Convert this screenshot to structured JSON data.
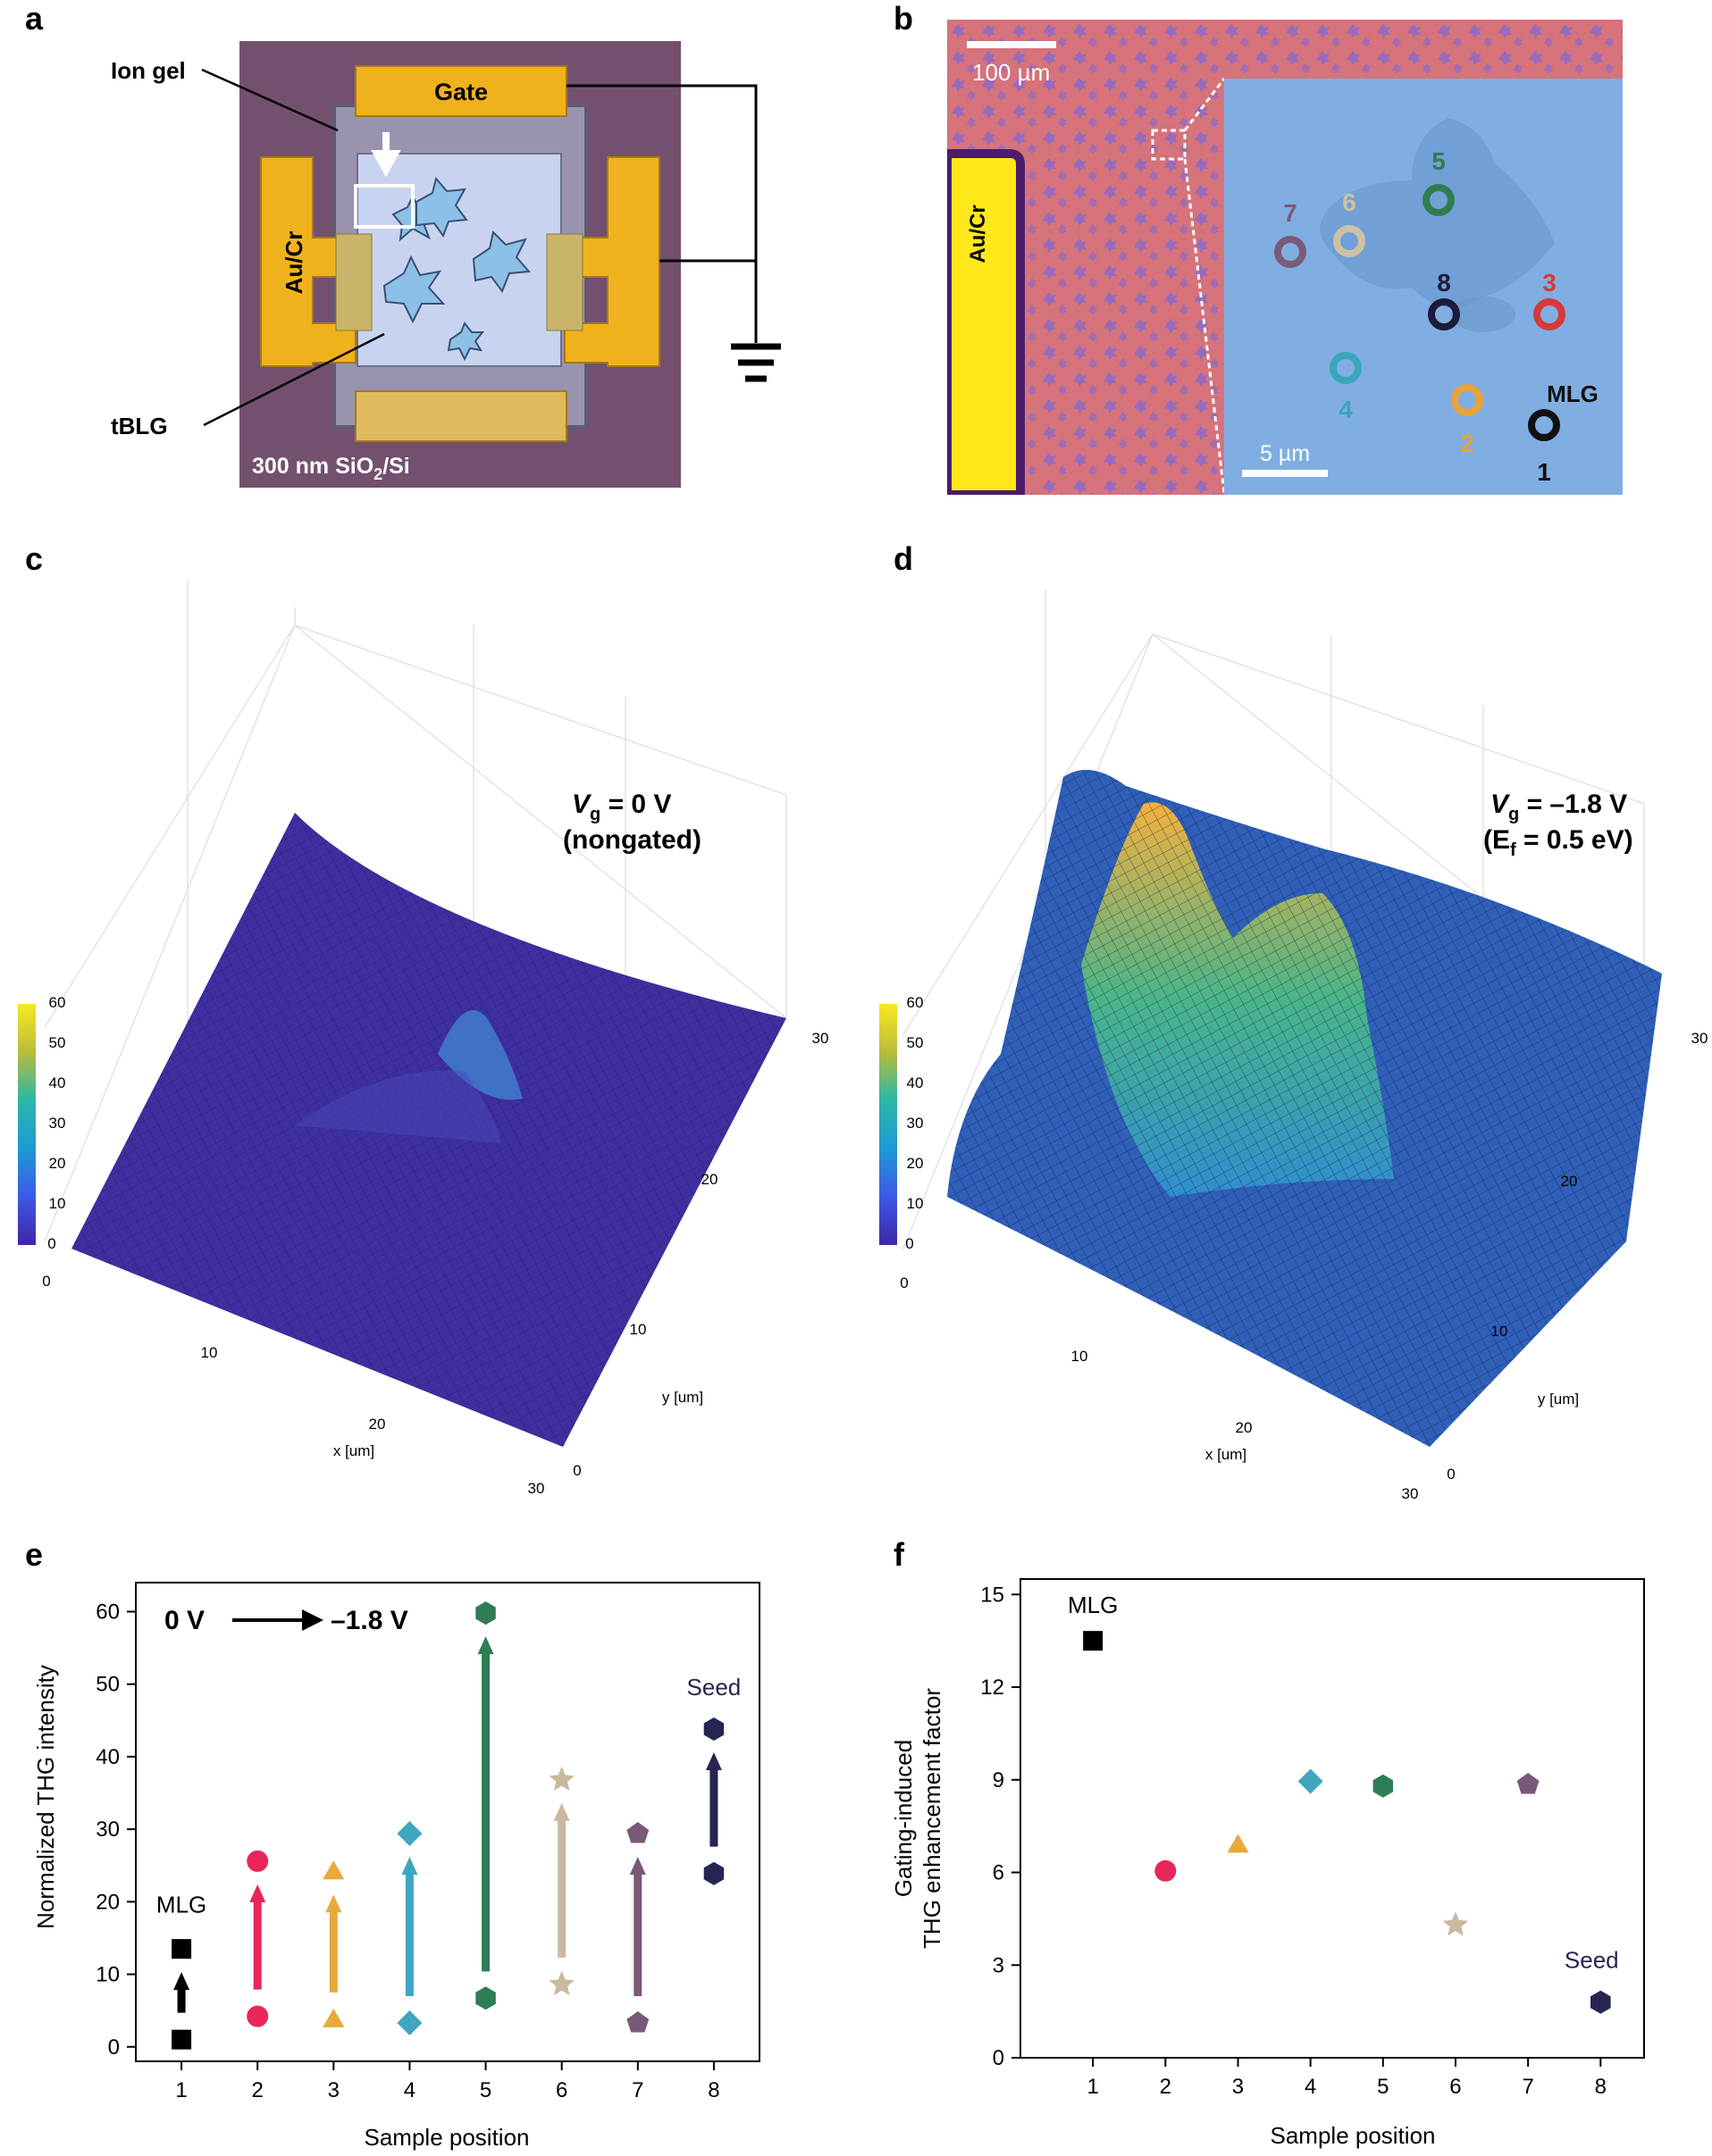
{
  "panels": {
    "a": {
      "letter": "a",
      "labels": {
        "ion_gel": "Ion gel",
        "gate": "Gate",
        "au_cr": "Au/Cr",
        "tblg": "tBLG",
        "substrate_main": "300 nm SiO",
        "substrate_sub": "2",
        "substrate_tail": "/Si"
      },
      "colors": {
        "substrate": "#74506f",
        "electrode": "#f0b21c",
        "flake": "#8cc0e6",
        "window": "#c8d4ef"
      }
    },
    "b": {
      "letter": "b",
      "scale_outer": "100 µm",
      "scale_inner": "5 µm",
      "au_cr": "Au/Cr",
      "mlg": "MLG",
      "positions": [
        {
          "num": "1",
          "color": "#111111"
        },
        {
          "num": "2",
          "color": "#e8a33a"
        },
        {
          "num": "3",
          "color": "#d63a3a"
        },
        {
          "num": "4",
          "color": "#3aa6b9"
        },
        {
          "num": "5",
          "color": "#2f7d4f"
        },
        {
          "num": "6",
          "color": "#cfc0a5"
        },
        {
          "num": "7",
          "color": "#7b5b78"
        },
        {
          "num": "8",
          "color": "#1c1c3a"
        }
      ]
    },
    "c": {
      "letter": "c",
      "annotation_main": "V",
      "annotation_sub": "g",
      "annotation_rest": " = 0 V",
      "annotation_line2": "(nongated)",
      "xlabel": "x [um]",
      "ylabel": "y [um]",
      "x_ticks": [
        "0",
        "10",
        "20",
        "30"
      ],
      "y_ticks": [
        "0",
        "10",
        "20",
        "30"
      ],
      "colorbar_ticks": [
        "0",
        "10",
        "20",
        "30",
        "40",
        "50",
        "60"
      ]
    },
    "d": {
      "letter": "d",
      "annotation_main": "V",
      "annotation_sub": "g",
      "annotation_rest": " = –1.8 V",
      "annotation_line2_a": "(E",
      "annotation_line2_sub": "f",
      "annotation_line2_b": " = 0.5 eV)",
      "xlabel": "x [um]",
      "ylabel": "y [um]",
      "x_ticks": [
        "0",
        "10",
        "20",
        "30"
      ],
      "y_ticks": [
        "0",
        "10",
        "20",
        "30"
      ],
      "colorbar_ticks": [
        "0",
        "10",
        "20",
        "30",
        "40",
        "50",
        "60"
      ]
    },
    "e": {
      "letter": "e"
    },
    "f": {
      "letter": "f"
    }
  },
  "chart_data": [
    {
      "panel": "e",
      "type": "scatter",
      "xlabel": "Sample position",
      "ylabel": "Normalized THG intensity",
      "x_ticks": [
        "1",
        "2",
        "3",
        "4",
        "5",
        "6",
        "7",
        "8"
      ],
      "y_ticks": [
        "0",
        "10",
        "20",
        "30",
        "40",
        "50",
        "60"
      ],
      "xlim": [
        0.4,
        8.6
      ],
      "ylim": [
        -2,
        64
      ],
      "legend_text": {
        "from": "0 V",
        "to": "–1.8 V"
      },
      "annotations": [
        {
          "text": "MLG",
          "x": 1,
          "y": 18.5
        },
        {
          "text": "Seed",
          "x": 8,
          "y": 48.5
        }
      ],
      "points": [
        {
          "x": 1,
          "before": 1,
          "after": 13.5,
          "marker": "square",
          "color": "#000000"
        },
        {
          "x": 2,
          "before": 4.2,
          "after": 25.6,
          "marker": "circle",
          "color": "#e8265a"
        },
        {
          "x": 3,
          "before": 3.8,
          "after": 24.2,
          "marker": "triangle",
          "color": "#e8a93a"
        },
        {
          "x": 4,
          "before": 3.3,
          "after": 29.4,
          "marker": "diamond",
          "color": "#3fa6c2"
        },
        {
          "x": 5,
          "before": 6.7,
          "after": 59.8,
          "marker": "hexagon",
          "color": "#2f7d55"
        },
        {
          "x": 6,
          "before": 8.6,
          "after": 36.8,
          "marker": "star",
          "color": "#c9b99e"
        },
        {
          "x": 7,
          "before": 3.3,
          "after": 29.4,
          "marker": "pentagon",
          "color": "#7a5878"
        },
        {
          "x": 8,
          "before": 23.9,
          "after": 43.8,
          "marker": "hexagon",
          "color": "#262552"
        }
      ]
    },
    {
      "panel": "f",
      "type": "scatter",
      "xlabel": "Sample position",
      "ylabel_line1": "Gating-induced",
      "ylabel_line2": "THG enhancement factor",
      "x_ticks": [
        "1",
        "2",
        "3",
        "4",
        "5",
        "6",
        "7",
        "8"
      ],
      "y_ticks": [
        "0",
        "3",
        "6",
        "9",
        "12",
        "15"
      ],
      "xlim": [
        0.0,
        8.6
      ],
      "ylim": [
        0,
        15.5
      ],
      "annotations": [
        {
          "text": "MLG",
          "x": 1,
          "y": 14.4
        },
        {
          "text": "Seed",
          "x": 8,
          "y": 2.9
        }
      ],
      "points": [
        {
          "x": 1,
          "y": 13.5,
          "marker": "square",
          "color": "#000000"
        },
        {
          "x": 2,
          "y": 6.05,
          "marker": "circle",
          "color": "#e8265a"
        },
        {
          "x": 3,
          "y": 6.9,
          "marker": "triangle",
          "color": "#e8a93a"
        },
        {
          "x": 4,
          "y": 8.95,
          "marker": "diamond",
          "color": "#3fa6c2"
        },
        {
          "x": 5,
          "y": 8.8,
          "marker": "hexagon",
          "color": "#2f7d55"
        },
        {
          "x": 6,
          "y": 4.3,
          "marker": "star",
          "color": "#c9b99e"
        },
        {
          "x": 7,
          "y": 8.85,
          "marker": "pentagon",
          "color": "#7a5878"
        },
        {
          "x": 8,
          "y": 1.8,
          "marker": "hexagon",
          "color": "#262552"
        }
      ]
    }
  ]
}
